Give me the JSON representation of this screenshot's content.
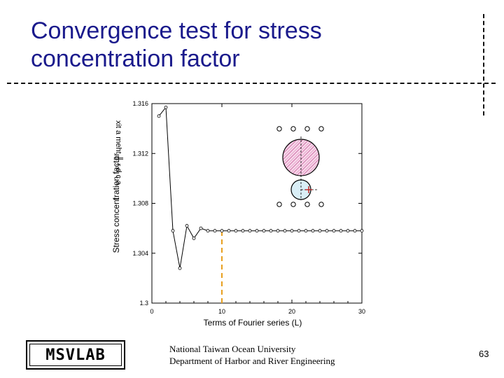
{
  "slide": {
    "title_line1": "Convergence test for stress",
    "title_line2": "concentration factor",
    "logo": "MSVLAB",
    "affiliation_line1": "National Taiwan Ocean University",
    "affiliation_line2": "Department of Harbor and River Engineering",
    "page_number": "63"
  },
  "chart_data": {
    "type": "line",
    "xlabel": "Terms of Fourier series (L)",
    "ylabel": "Stress concentration factor",
    "ylabel_fragment": "f",
    "ylabel_overlay": "xit a meht ╫ r d c a",
    "xlim": [
      0,
      30
    ],
    "ylim": [
      1.3,
      1.316
    ],
    "xticks": [
      0,
      10,
      20,
      30
    ],
    "yticks": [
      1.3,
      1.304,
      1.308,
      1.312,
      1.316
    ],
    "ytick_labels": [
      "1.3",
      "1.304",
      "1.308",
      "1.312",
      "1.316"
    ],
    "grid": false,
    "series": [
      {
        "x": [
          1,
          2,
          3,
          4,
          5,
          6,
          7,
          8,
          9,
          10,
          11,
          12,
          13,
          14,
          15,
          16,
          17,
          18,
          19,
          20,
          21,
          22,
          23,
          24,
          25,
          26,
          27,
          28,
          29,
          30
        ],
        "values": [
          1.315,
          1.3157,
          1.3058,
          1.3028,
          1.3062,
          1.3052,
          1.306,
          1.3058,
          1.3058,
          1.3058,
          1.3058,
          1.3058,
          1.3058,
          1.3058,
          1.3058,
          1.3058,
          1.3058,
          1.3058,
          1.3058,
          1.3058,
          1.3058,
          1.3058,
          1.3058,
          1.3058,
          1.3058,
          1.3058,
          1.3058,
          1.3058,
          1.3058,
          1.3058
        ]
      }
    ],
    "annotation": {
      "type": "vertical-dashed-line",
      "x": 10,
      "color": "#e8a020"
    },
    "colors": {
      "line": "#000000",
      "annotation": "#e8a020",
      "inset_fill": "#f2c8e0",
      "inset_hatch": "#d070a8"
    }
  }
}
